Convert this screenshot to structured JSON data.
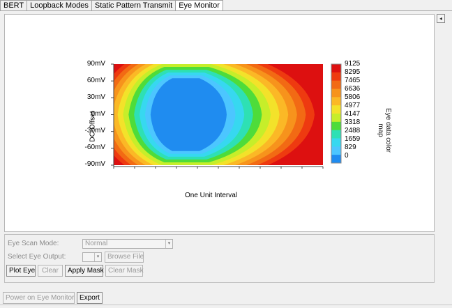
{
  "tabs": [
    {
      "label": "BERT"
    },
    {
      "label": "Loopback Modes"
    },
    {
      "label": "Static Pattern Transmit"
    },
    {
      "label": "Eye Monitor"
    }
  ],
  "scroll_glyph": "◂",
  "chart_data": {
    "type": "heatmap",
    "title": "",
    "xlabel": "One Unit Interval",
    "ylabel": "DC-Offset",
    "colorbar_title": "Eye data color map",
    "y_ticks": [
      "90mV",
      "60mV",
      "30mV",
      "0mV",
      "-30mV",
      "-60mV",
      "-90mV"
    ],
    "ylim": [
      -90,
      90
    ],
    "colorbar_ticks": [
      "9125",
      "8295",
      "7465",
      "6636",
      "5806",
      "4977",
      "4147",
      "3318",
      "2488",
      "1659",
      "829",
      "0"
    ],
    "colorbar_range": [
      0,
      9125
    ],
    "colors": [
      "#dd1010",
      "#ee3a10",
      "#f26a14",
      "#f7931c",
      "#fbb826",
      "#f3e22a",
      "#c6ee2a",
      "#4edc3a",
      "#2ee0b4",
      "#37d8f0",
      "#4cc6ff",
      "#1f8cf0"
    ],
    "eye_opening_mv": [
      -80,
      80
    ],
    "grid": false
  },
  "controls": {
    "eye_scan_mode_label": "Eye Scan Mode:",
    "eye_scan_mode_value": "Normal",
    "select_eye_output_label": "Select Eye Output:",
    "select_eye_output_value": "",
    "browse_file": "Browse File",
    "plot_eye": "Plot Eye",
    "clear": "Clear",
    "apply_mask": "Apply Mask",
    "clear_mask": "Clear Mask"
  },
  "footer": {
    "power_on": "Power on Eye Monitor",
    "export": "Export"
  }
}
